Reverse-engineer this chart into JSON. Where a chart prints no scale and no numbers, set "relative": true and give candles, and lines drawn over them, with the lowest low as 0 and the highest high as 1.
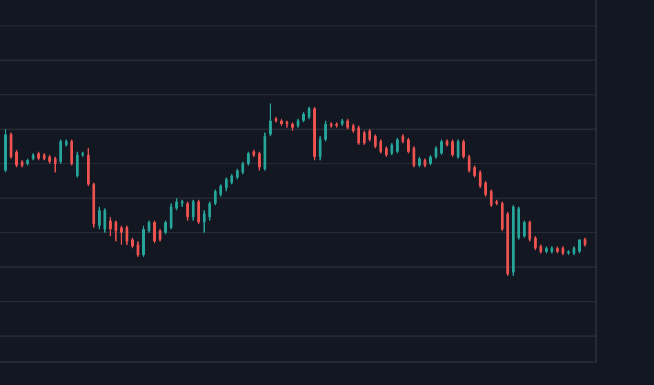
{
  "chart_data": {
    "type": "candlestick",
    "relative": true,
    "grid": "y",
    "colors": [
      "#26a69a",
      "#ef5350",
      "#ef5350",
      "#ef5350",
      "#26a69a",
      "#26a69a",
      "#ef5350",
      "#ef5350",
      "#ef5350",
      "#ef5350",
      "#26a69a",
      "#26a69a",
      "#ef5350",
      "#26a69a",
      "#26a69a",
      "#ef5350",
      "#ef5350",
      "#26a69a",
      "#26a69a",
      "#ef5350",
      "#ef5350",
      "#ef5350",
      "#ef5350",
      "#ef5350",
      "#ef5350",
      "#26a69a",
      "#26a69a",
      "#ef5350",
      "#ef5350",
      "#26a69a",
      "#26a69a",
      "#26a69a",
      "#26a69a",
      "#ef5350",
      "#26a69a",
      "#ef5350",
      "#26a69a",
      "#26a69a",
      "#26a69a",
      "#26a69a",
      "#26a69a",
      "#26a69a",
      "#26a69a",
      "#26a69a",
      "#26a69a",
      "#ef5350",
      "#ef5350",
      "#26a69a",
      "#26a69a",
      "#ef5350",
      "#ef5350",
      "#ef5350",
      "#ef5350",
      "#26a69a",
      "#26a69a",
      "#26a69a",
      "#ef5350",
      "#26a69a",
      "#26a69a",
      "#ef5350",
      "#ef5350",
      "#26a69a",
      "#ef5350",
      "#ef5350",
      "#ef5350",
      "#ef5350",
      "#ef5350",
      "#ef5350",
      "#ef5350",
      "#ef5350",
      "#26a69a",
      "#26a69a",
      "#ef5350",
      "#ef5350",
      "#ef5350",
      "#26a69a",
      "#ef5350",
      "#26a69a",
      "#26a69a",
      "#26a69a",
      "#ef5350",
      "#ef5350",
      "#26a69a",
      "#ef5350",
      "#ef5350",
      "#ef5350",
      "#ef5350",
      "#ef5350",
      "#ef5350",
      "#ef5350",
      "#ef5350",
      "#ef5350",
      "#26a69a",
      "#26a69a",
      "#26a69a",
      "#ef5350",
      "#ef5350",
      "#ef5350",
      "#26a69a",
      "#26a69a",
      "#ef5350",
      "#ef5350",
      "#26a69a",
      "#26a69a",
      "#26a69a",
      "#ef5350"
    ],
    "categories": [
      null,
      null,
      null,
      null,
      null,
      null,
      null,
      null,
      null,
      null,
      null,
      null,
      null,
      null,
      null,
      null,
      null,
      null,
      null,
      null,
      null,
      null,
      null,
      null,
      null,
      null,
      null,
      null,
      null,
      null,
      null,
      null,
      null,
      null,
      null,
      null,
      null,
      null,
      null,
      null,
      null,
      null,
      null,
      null,
      null,
      null,
      null,
      null,
      null,
      null,
      null,
      null,
      null,
      null,
      null,
      null,
      null,
      null,
      null,
      null,
      null,
      null,
      null,
      null,
      null,
      null,
      null,
      null,
      null,
      null,
      null,
      null,
      null,
      null,
      null,
      null,
      null,
      null,
      null,
      null,
      null,
      null,
      null,
      null,
      null,
      null,
      null,
      null,
      null,
      null,
      null,
      null,
      null,
      null,
      null,
      null,
      null,
      null,
      null,
      null,
      null,
      null,
      null,
      null,
      null,
      null
    ],
    "ohlc": [
      [
        0.61,
        0.85,
        0.6,
        0.82
      ],
      [
        0.82,
        0.83,
        0.68,
        0.69
      ],
      [
        0.72,
        0.73,
        0.63,
        0.64
      ],
      [
        0.66,
        0.67,
        0.63,
        0.64
      ],
      [
        0.65,
        0.68,
        0.64,
        0.67
      ],
      [
        0.68,
        0.71,
        0.67,
        0.7
      ],
      [
        0.71,
        0.72,
        0.67,
        0.68
      ],
      [
        0.7,
        0.71,
        0.67,
        0.68
      ],
      [
        0.69,
        0.7,
        0.65,
        0.66
      ],
      [
        0.68,
        0.69,
        0.6,
        0.65
      ],
      [
        0.66,
        0.79,
        0.65,
        0.78
      ],
      [
        0.76,
        0.79,
        0.75,
        0.78
      ],
      [
        0.78,
        0.79,
        0.64,
        0.65
      ],
      [
        0.58,
        0.72,
        0.57,
        0.7
      ],
      [
        0.7,
        0.72,
        0.69,
        0.71
      ],
      [
        0.7,
        0.74,
        0.52,
        0.53
      ],
      [
        0.53,
        0.54,
        0.28,
        0.3
      ],
      [
        0.29,
        0.4,
        0.27,
        0.38
      ],
      [
        0.27,
        0.39,
        0.25,
        0.38
      ],
      [
        0.32,
        0.34,
        0.23,
        0.27
      ],
      [
        0.31,
        0.32,
        0.2,
        0.26
      ],
      [
        0.28,
        0.29,
        0.18,
        0.25
      ],
      [
        0.28,
        0.29,
        0.18,
        0.2
      ],
      [
        0.21,
        0.22,
        0.16,
        0.17
      ],
      [
        0.18,
        0.2,
        0.11,
        0.12
      ],
      [
        0.12,
        0.29,
        0.11,
        0.27
      ],
      [
        0.26,
        0.32,
        0.25,
        0.31
      ],
      [
        0.31,
        0.32,
        0.19,
        0.2
      ],
      [
        0.26,
        0.27,
        0.2,
        0.21
      ],
      [
        0.25,
        0.32,
        0.24,
        0.31
      ],
      [
        0.28,
        0.42,
        0.27,
        0.4
      ],
      [
        0.39,
        0.45,
        0.38,
        0.43
      ],
      [
        0.42,
        0.44,
        0.4,
        0.43
      ],
      [
        0.42,
        0.43,
        0.32,
        0.34
      ],
      [
        0.34,
        0.44,
        0.32,
        0.43
      ],
      [
        0.43,
        0.44,
        0.3,
        0.31
      ],
      [
        0.31,
        0.38,
        0.25,
        0.36
      ],
      [
        0.34,
        0.43,
        0.32,
        0.42
      ],
      [
        0.42,
        0.5,
        0.41,
        0.49
      ],
      [
        0.47,
        0.53,
        0.46,
        0.52
      ],
      [
        0.51,
        0.57,
        0.49,
        0.56
      ],
      [
        0.54,
        0.59,
        0.53,
        0.58
      ],
      [
        0.57,
        0.62,
        0.56,
        0.61
      ],
      [
        0.6,
        0.66,
        0.59,
        0.65
      ],
      [
        0.65,
        0.72,
        0.64,
        0.71
      ],
      [
        0.72,
        0.73,
        0.69,
        0.7
      ],
      [
        0.71,
        0.72,
        0.61,
        0.63
      ],
      [
        0.62,
        0.83,
        0.61,
        0.81
      ],
      [
        0.82,
        1.0,
        0.81,
        0.9
      ],
      [
        0.91,
        0.92,
        0.89,
        0.9
      ],
      [
        0.9,
        0.91,
        0.87,
        0.88
      ],
      [
        0.89,
        0.9,
        0.86,
        0.88
      ],
      [
        0.88,
        0.89,
        0.84,
        0.86
      ],
      [
        0.87,
        0.91,
        0.86,
        0.9
      ],
      [
        0.9,
        0.95,
        0.89,
        0.94
      ],
      [
        0.92,
        0.98,
        0.91,
        0.97
      ],
      [
        0.97,
        0.98,
        0.67,
        0.69
      ],
      [
        0.69,
        0.81,
        0.67,
        0.79
      ],
      [
        0.79,
        0.9,
        0.78,
        0.88
      ],
      [
        0.88,
        0.89,
        0.86,
        0.87
      ],
      [
        0.88,
        0.89,
        0.86,
        0.87
      ],
      [
        0.88,
        0.91,
        0.87,
        0.9
      ],
      [
        0.9,
        0.91,
        0.85,
        0.86
      ],
      [
        0.87,
        0.88,
        0.83,
        0.84
      ],
      [
        0.86,
        0.87,
        0.76,
        0.77
      ],
      [
        0.83,
        0.84,
        0.76,
        0.77
      ],
      [
        0.84,
        0.85,
        0.78,
        0.79
      ],
      [
        0.81,
        0.82,
        0.74,
        0.75
      ],
      [
        0.78,
        0.79,
        0.71,
        0.72
      ],
      [
        0.74,
        0.75,
        0.69,
        0.7
      ],
      [
        0.71,
        0.77,
        0.7,
        0.76
      ],
      [
        0.72,
        0.8,
        0.71,
        0.79
      ],
      [
        0.81,
        0.82,
        0.77,
        0.78
      ],
      [
        0.79,
        0.8,
        0.71,
        0.72
      ],
      [
        0.74,
        0.75,
        0.63,
        0.64
      ],
      [
        0.64,
        0.69,
        0.63,
        0.68
      ],
      [
        0.67,
        0.68,
        0.63,
        0.64
      ],
      [
        0.65,
        0.7,
        0.64,
        0.69
      ],
      [
        0.69,
        0.75,
        0.68,
        0.74
      ],
      [
        0.71,
        0.79,
        0.7,
        0.78
      ],
      [
        0.78,
        0.79,
        0.75,
        0.76
      ],
      [
        0.78,
        0.79,
        0.69,
        0.7
      ],
      [
        0.69,
        0.79,
        0.68,
        0.78
      ],
      [
        0.78,
        0.79,
        0.68,
        0.69
      ],
      [
        0.69,
        0.7,
        0.6,
        0.61
      ],
      [
        0.63,
        0.64,
        0.57,
        0.58
      ],
      [
        0.6,
        0.61,
        0.51,
        0.52
      ],
      [
        0.54,
        0.55,
        0.46,
        0.47
      ],
      [
        0.49,
        0.5,
        0.4,
        0.41
      ],
      [
        0.43,
        0.44,
        0.41,
        0.42
      ],
      [
        0.42,
        0.43,
        0.26,
        0.27
      ],
      [
        0.36,
        0.37,
        0,
        0.01
      ],
      [
        0.02,
        0.41,
        0,
        0.4
      ],
      [
        0.22,
        0.4,
        0.21,
        0.39
      ],
      [
        0.23,
        0.32,
        0.22,
        0.31
      ],
      [
        0.31,
        0.32,
        0.2,
        0.21
      ],
      [
        0.22,
        0.23,
        0.15,
        0.16
      ],
      [
        0.17,
        0.18,
        0.13,
        0.14
      ],
      [
        0.14,
        0.17,
        0.13,
        0.16
      ],
      [
        0.14,
        0.17,
        0.13,
        0.16
      ],
      [
        0.16,
        0.17,
        0.13,
        0.14
      ],
      [
        0.16,
        0.17,
        0.12,
        0.13
      ],
      [
        0.13,
        0.15,
        0.12,
        0.14
      ],
      [
        0.13,
        0.17,
        0.12,
        0.16
      ],
      [
        0.14,
        0.21,
        0.13,
        0.21
      ],
      [
        0.21,
        0.22,
        0.17,
        0.18
      ]
    ]
  }
}
